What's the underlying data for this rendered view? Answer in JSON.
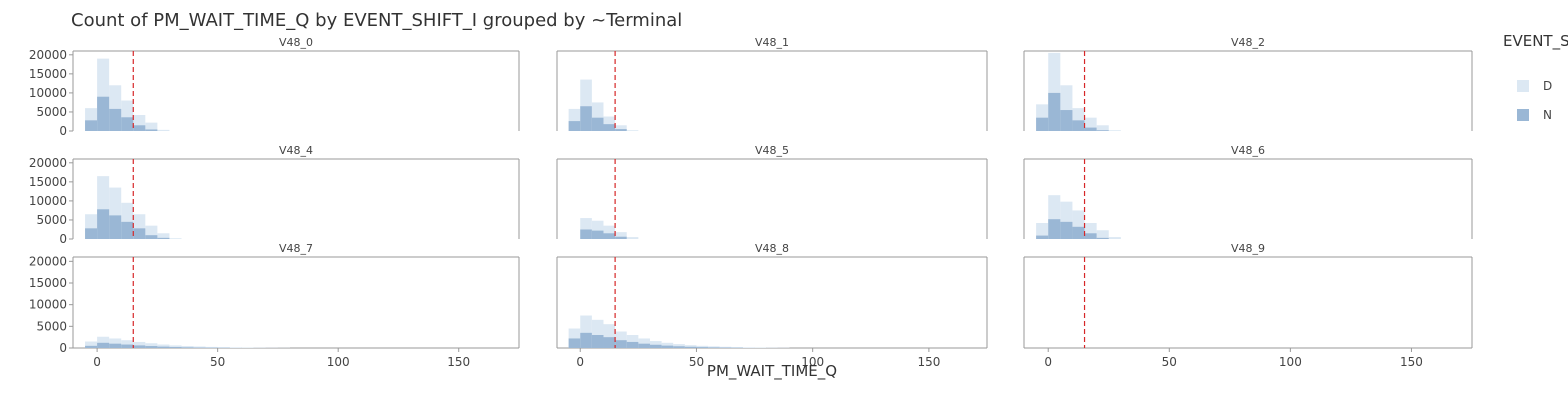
{
  "chart_data": {
    "type": "bar",
    "title": "Count of PM_WAIT_TIME_Q by EVENT_SHIFT_I grouped by ~Terminal",
    "xlabel": "PM_WAIT_TIME_Q",
    "ylabel": "",
    "legend": {
      "title": "EVENT_S",
      "placement": "right",
      "entries": [
        {
          "name": "D",
          "color": "#dce8f3"
        },
        {
          "name": "N",
          "color": "#9ab7d5"
        }
      ]
    },
    "xlim": [
      -10,
      175
    ],
    "ylim": [
      0,
      21000
    ],
    "x_ticks": [
      0,
      50,
      100,
      150
    ],
    "y_ticks": [
      0,
      5000,
      10000,
      15000,
      20000
    ],
    "bin_width": 5,
    "reference_line": {
      "x": 15,
      "color": "#d62728",
      "style": "dashed"
    },
    "facets": [
      {
        "name": "V48_0",
        "series": [
          {
            "name": "D",
            "bins": [
              {
                "x": -2.5,
                "y": 6000
              },
              {
                "x": 2.5,
                "y": 19000
              },
              {
                "x": 7.5,
                "y": 12000
              },
              {
                "x": 12.5,
                "y": 8000
              },
              {
                "x": 17.5,
                "y": 4200
              },
              {
                "x": 22.5,
                "y": 2200
              },
              {
                "x": 27.5,
                "y": 300
              }
            ]
          },
          {
            "name": "N",
            "bins": [
              {
                "x": -2.5,
                "y": 2800
              },
              {
                "x": 2.5,
                "y": 9000
              },
              {
                "x": 7.5,
                "y": 5800
              },
              {
                "x": 12.5,
                "y": 3600
              },
              {
                "x": 17.5,
                "y": 1500
              },
              {
                "x": 22.5,
                "y": 400
              }
            ]
          }
        ]
      },
      {
        "name": "V48_1",
        "series": [
          {
            "name": "D",
            "bins": [
              {
                "x": -2.5,
                "y": 5800
              },
              {
                "x": 2.5,
                "y": 13500
              },
              {
                "x": 7.5,
                "y": 7500
              },
              {
                "x": 12.5,
                "y": 3800
              },
              {
                "x": 17.5,
                "y": 1500
              },
              {
                "x": 22.5,
                "y": 200
              }
            ]
          },
          {
            "name": "N",
            "bins": [
              {
                "x": -2.5,
                "y": 2600
              },
              {
                "x": 2.5,
                "y": 6500
              },
              {
                "x": 7.5,
                "y": 3500
              },
              {
                "x": 12.5,
                "y": 1800
              },
              {
                "x": 17.5,
                "y": 500
              }
            ]
          }
        ]
      },
      {
        "name": "V48_2",
        "series": [
          {
            "name": "D",
            "bins": [
              {
                "x": -2.5,
                "y": 7000
              },
              {
                "x": 2.5,
                "y": 20500
              },
              {
                "x": 7.5,
                "y": 12000
              },
              {
                "x": 12.5,
                "y": 6000
              },
              {
                "x": 17.5,
                "y": 3500
              },
              {
                "x": 22.5,
                "y": 1500
              },
              {
                "x": 27.5,
                "y": 200
              }
            ]
          },
          {
            "name": "N",
            "bins": [
              {
                "x": -2.5,
                "y": 3500
              },
              {
                "x": 2.5,
                "y": 10000
              },
              {
                "x": 7.5,
                "y": 5500
              },
              {
                "x": 12.5,
                "y": 2800
              },
              {
                "x": 17.5,
                "y": 900
              },
              {
                "x": 22.5,
                "y": 200
              }
            ]
          }
        ]
      },
      {
        "name": "V48_4",
        "series": [
          {
            "name": "D",
            "bins": [
              {
                "x": -2.5,
                "y": 6500
              },
              {
                "x": 2.5,
                "y": 16500
              },
              {
                "x": 7.5,
                "y": 13500
              },
              {
                "x": 12.5,
                "y": 9500
              },
              {
                "x": 17.5,
                "y": 6500
              },
              {
                "x": 22.5,
                "y": 3500
              },
              {
                "x": 27.5,
                "y": 1500
              },
              {
                "x": 32.5,
                "y": 200
              }
            ]
          },
          {
            "name": "N",
            "bins": [
              {
                "x": -2.5,
                "y": 2800
              },
              {
                "x": 2.5,
                "y": 7800
              },
              {
                "x": 7.5,
                "y": 6200
              },
              {
                "x": 12.5,
                "y": 4500
              },
              {
                "x": 17.5,
                "y": 2800
              },
              {
                "x": 22.5,
                "y": 1000
              },
              {
                "x": 27.5,
                "y": 300
              }
            ]
          }
        ]
      },
      {
        "name": "V48_5",
        "series": [
          {
            "name": "D",
            "bins": [
              {
                "x": 2.5,
                "y": 5500
              },
              {
                "x": 7.5,
                "y": 4800
              },
              {
                "x": 12.5,
                "y": 3500
              },
              {
                "x": 17.5,
                "y": 1800
              },
              {
                "x": 22.5,
                "y": 500
              }
            ]
          },
          {
            "name": "N",
            "bins": [
              {
                "x": 2.5,
                "y": 2500
              },
              {
                "x": 7.5,
                "y": 2200
              },
              {
                "x": 12.5,
                "y": 1500
              },
              {
                "x": 17.5,
                "y": 600
              }
            ]
          }
        ]
      },
      {
        "name": "V48_6",
        "series": [
          {
            "name": "D",
            "bins": [
              {
                "x": -2.5,
                "y": 4200
              },
              {
                "x": 2.5,
                "y": 11500
              },
              {
                "x": 7.5,
                "y": 9800
              },
              {
                "x": 12.5,
                "y": 7500
              },
              {
                "x": 17.5,
                "y": 4200
              },
              {
                "x": 22.5,
                "y": 2300
              },
              {
                "x": 27.5,
                "y": 500
              }
            ]
          },
          {
            "name": "N",
            "bins": [
              {
                "x": -2.5,
                "y": 900
              },
              {
                "x": 2.5,
                "y": 5200
              },
              {
                "x": 7.5,
                "y": 4500
              },
              {
                "x": 12.5,
                "y": 3200
              },
              {
                "x": 17.5,
                "y": 1500
              },
              {
                "x": 22.5,
                "y": 300
              }
            ]
          }
        ]
      },
      {
        "name": "V48_7",
        "series": [
          {
            "name": "D",
            "bins": [
              {
                "x": -2.5,
                "y": 1500
              },
              {
                "x": 2.5,
                "y": 2600
              },
              {
                "x": 7.5,
                "y": 2200
              },
              {
                "x": 12.5,
                "y": 1800
              },
              {
                "x": 17.5,
                "y": 1400
              },
              {
                "x": 22.5,
                "y": 1100
              },
              {
                "x": 27.5,
                "y": 800
              },
              {
                "x": 32.5,
                "y": 600
              },
              {
                "x": 37.5,
                "y": 450
              },
              {
                "x": 42.5,
                "y": 350
              },
              {
                "x": 47.5,
                "y": 250
              },
              {
                "x": 52.5,
                "y": 200
              },
              {
                "x": 57.5,
                "y": 150
              },
              {
                "x": 62.5,
                "y": 110
              },
              {
                "x": 67.5,
                "y": 80
              },
              {
                "x": 72.5,
                "y": 60
              },
              {
                "x": 77.5,
                "y": 40
              }
            ]
          },
          {
            "name": "N",
            "bins": [
              {
                "x": -2.5,
                "y": 500
              },
              {
                "x": 2.5,
                "y": 1200
              },
              {
                "x": 7.5,
                "y": 1000
              },
              {
                "x": 12.5,
                "y": 800
              },
              {
                "x": 17.5,
                "y": 600
              },
              {
                "x": 22.5,
                "y": 450
              },
              {
                "x": 27.5,
                "y": 320
              },
              {
                "x": 32.5,
                "y": 220
              },
              {
                "x": 37.5,
                "y": 150
              },
              {
                "x": 42.5,
                "y": 100
              },
              {
                "x": 47.5,
                "y": 70
              },
              {
                "x": 52.5,
                "y": 50
              }
            ]
          }
        ]
      },
      {
        "name": "V48_8",
        "series": [
          {
            "name": "D",
            "bins": [
              {
                "x": -2.5,
                "y": 4500
              },
              {
                "x": 2.5,
                "y": 7500
              },
              {
                "x": 7.5,
                "y": 6500
              },
              {
                "x": 12.5,
                "y": 5500
              },
              {
                "x": 17.5,
                "y": 3800
              },
              {
                "x": 22.5,
                "y": 3000
              },
              {
                "x": 27.5,
                "y": 2200
              },
              {
                "x": 32.5,
                "y": 1600
              },
              {
                "x": 37.5,
                "y": 1200
              },
              {
                "x": 42.5,
                "y": 900
              },
              {
                "x": 47.5,
                "y": 650
              },
              {
                "x": 52.5,
                "y": 500
              },
              {
                "x": 57.5,
                "y": 380
              },
              {
                "x": 62.5,
                "y": 280
              },
              {
                "x": 67.5,
                "y": 200
              },
              {
                "x": 72.5,
                "y": 150
              },
              {
                "x": 77.5,
                "y": 110
              },
              {
                "x": 82.5,
                "y": 80
              },
              {
                "x": 87.5,
                "y": 60
              }
            ]
          },
          {
            "name": "N",
            "bins": [
              {
                "x": -2.5,
                "y": 2200
              },
              {
                "x": 2.5,
                "y": 3500
              },
              {
                "x": 7.5,
                "y": 3000
              },
              {
                "x": 12.5,
                "y": 2500
              },
              {
                "x": 17.5,
                "y": 1800
              },
              {
                "x": 22.5,
                "y": 1400
              },
              {
                "x": 27.5,
                "y": 1000
              },
              {
                "x": 32.5,
                "y": 750
              },
              {
                "x": 37.5,
                "y": 550
              },
              {
                "x": 42.5,
                "y": 400
              },
              {
                "x": 47.5,
                "y": 280
              },
              {
                "x": 52.5,
                "y": 200
              },
              {
                "x": 57.5,
                "y": 140
              },
              {
                "x": 62.5,
                "y": 100
              },
              {
                "x": 67.5,
                "y": 70
              }
            ]
          }
        ]
      },
      {
        "name": "V48_9",
        "series": [
          {
            "name": "D",
            "bins": []
          },
          {
            "name": "N",
            "bins": []
          }
        ]
      }
    ]
  }
}
